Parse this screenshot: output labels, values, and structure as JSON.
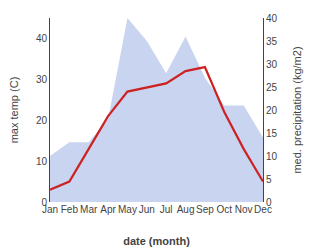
{
  "chart_data": {
    "type": "line",
    "categories": [
      "Jan",
      "Feb",
      "Mar",
      "Apr",
      "May",
      "Jun",
      "Jul",
      "Aug",
      "Sep",
      "Oct",
      "Nov",
      "Dec"
    ],
    "series": [
      {
        "type": "area",
        "axis": "y2",
        "color": "#c8d4f0",
        "values": [
          10,
          13,
          13,
          18,
          40,
          35,
          28,
          36,
          27,
          21,
          21,
          14
        ]
      },
      {
        "type": "line",
        "color": "#cc2222",
        "values": [
          3,
          5,
          13,
          21,
          27,
          28,
          29,
          32,
          33,
          22,
          13,
          5
        ]
      }
    ],
    "xlabel": "date (month)",
    "ylabel": "max temp (C)",
    "y2label": "med. precipitation (kg/m2)",
    "ylim": [
      0,
      45
    ],
    "yticks": [
      0,
      10,
      20,
      30,
      40
    ],
    "y2lim": [
      0,
      40
    ],
    "y2ticks": [
      0,
      5,
      10,
      15,
      20,
      25,
      30,
      35,
      40
    ],
    "grid": false
  }
}
